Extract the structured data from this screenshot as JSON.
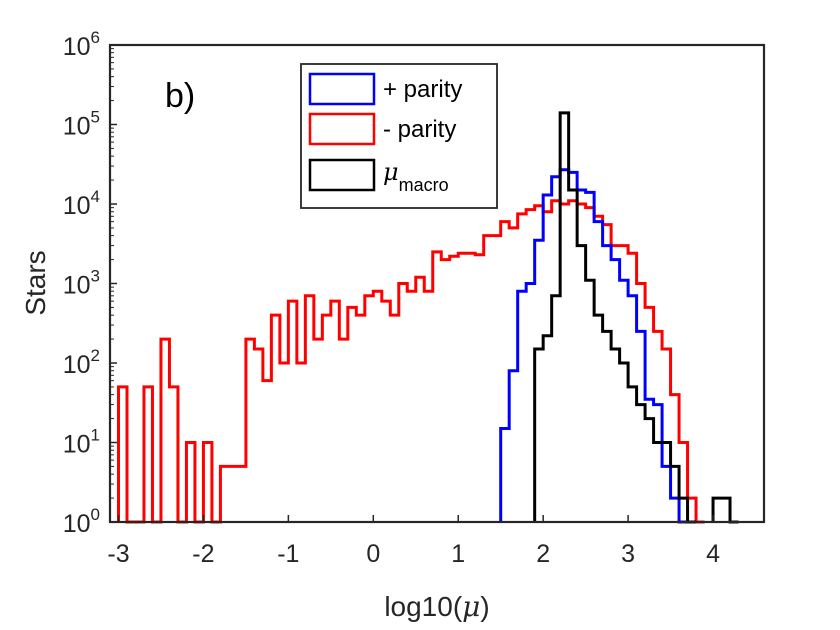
{
  "chart_data": {
    "type": "histogram",
    "panel_label": "b)",
    "xlabel": "log10(",
    "xlabel_symbol": "μ",
    "xlabel_close": ")",
    "ylabel": "Stars",
    "xlim": [
      -3.1,
      4.6
    ],
    "ylim": [
      1,
      1000000
    ],
    "y_scale": "log",
    "x_ticks": [
      "-3",
      "-2",
      "-1",
      "0",
      "1",
      "2",
      "3",
      "4"
    ],
    "y_tick_base": "10",
    "y_tick_exponents": [
      "0",
      "1",
      "2",
      "3",
      "4",
      "5",
      "6"
    ],
    "legend_position": "top-center",
    "series": [
      {
        "name": "+ parity",
        "color": "#0000ff",
        "bins": [
          [
            1.5,
            1.6,
            15
          ],
          [
            1.6,
            1.7,
            80
          ],
          [
            1.7,
            1.8,
            800
          ],
          [
            1.8,
            1.9,
            1000
          ],
          [
            1.9,
            2.0,
            3500
          ],
          [
            2.0,
            2.1,
            13000
          ],
          [
            2.1,
            2.2,
            22000
          ],
          [
            2.2,
            2.3,
            27000
          ],
          [
            2.3,
            2.4,
            25000
          ],
          [
            2.4,
            2.5,
            15000
          ],
          [
            2.5,
            2.6,
            14000
          ],
          [
            2.6,
            2.7,
            6000
          ],
          [
            2.7,
            2.8,
            3000
          ],
          [
            2.8,
            2.9,
            2000
          ],
          [
            2.9,
            3.0,
            1100
          ],
          [
            3.0,
            3.1,
            700
          ],
          [
            3.1,
            3.2,
            250
          ],
          [
            3.2,
            3.3,
            35
          ],
          [
            3.3,
            3.4,
            30
          ],
          [
            3.4,
            3.5,
            5
          ],
          [
            3.5,
            3.6,
            2
          ],
          [
            3.6,
            3.7,
            1
          ]
        ]
      },
      {
        "name": "- parity",
        "color": "#ff0000",
        "bins": [
          [
            -3.0,
            -2.9,
            50
          ],
          [
            -2.9,
            -2.8,
            1
          ],
          [
            -2.8,
            -2.7,
            1
          ],
          [
            -2.7,
            -2.6,
            50
          ],
          [
            -2.6,
            -2.5,
            1
          ],
          [
            -2.5,
            -2.4,
            200
          ],
          [
            -2.4,
            -2.3,
            50
          ],
          [
            -2.3,
            -2.2,
            1
          ],
          [
            -2.2,
            -2.1,
            10
          ],
          [
            -2.1,
            -2.0,
            1
          ],
          [
            -2.0,
            -1.9,
            10
          ],
          [
            -1.9,
            -1.8,
            1
          ],
          [
            -1.8,
            -1.7,
            5
          ],
          [
            -1.7,
            -1.6,
            5
          ],
          [
            -1.6,
            -1.5,
            5
          ],
          [
            -1.5,
            -1.4,
            200
          ],
          [
            -1.4,
            -1.3,
            150
          ],
          [
            -1.3,
            -1.2,
            60
          ],
          [
            -1.2,
            -1.1,
            400
          ],
          [
            -1.1,
            -1.0,
            100
          ],
          [
            -1.0,
            -0.9,
            600
          ],
          [
            -0.9,
            -0.8,
            100
          ],
          [
            -0.8,
            -0.7,
            700
          ],
          [
            -0.7,
            -0.6,
            200
          ],
          [
            -0.6,
            -0.5,
            400
          ],
          [
            -0.5,
            -0.4,
            600
          ],
          [
            -0.4,
            -0.3,
            200
          ],
          [
            -0.3,
            -0.2,
            500
          ],
          [
            -0.2,
            -0.1,
            400
          ],
          [
            -0.1,
            0.0,
            700
          ],
          [
            0.0,
            0.1,
            800
          ],
          [
            0.1,
            0.2,
            600
          ],
          [
            0.2,
            0.3,
            400
          ],
          [
            0.3,
            0.4,
            1000
          ],
          [
            0.4,
            0.5,
            800
          ],
          [
            0.5,
            0.6,
            1200
          ],
          [
            0.6,
            0.7,
            800
          ],
          [
            0.7,
            0.8,
            2500
          ],
          [
            0.8,
            0.9,
            2000
          ],
          [
            0.9,
            1.0,
            2200
          ],
          [
            1.0,
            1.1,
            2400
          ],
          [
            1.1,
            1.2,
            2400
          ],
          [
            1.2,
            1.3,
            2300
          ],
          [
            1.3,
            1.4,
            4000
          ],
          [
            1.4,
            1.5,
            4000
          ],
          [
            1.5,
            1.6,
            6000
          ],
          [
            1.6,
            1.7,
            5000
          ],
          [
            1.7,
            1.8,
            7500
          ],
          [
            1.8,
            1.9,
            8500
          ],
          [
            1.9,
            2.0,
            9500
          ],
          [
            2.0,
            2.1,
            8000
          ],
          [
            2.1,
            2.2,
            11000
          ],
          [
            2.2,
            2.3,
            10000
          ],
          [
            2.3,
            2.4,
            11000
          ],
          [
            2.4,
            2.5,
            10000
          ],
          [
            2.5,
            2.6,
            9000
          ],
          [
            2.6,
            2.7,
            7000
          ],
          [
            2.7,
            2.8,
            5500
          ],
          [
            2.8,
            2.9,
            3000
          ],
          [
            2.9,
            3.0,
            3000
          ],
          [
            3.0,
            3.1,
            2400
          ],
          [
            3.1,
            3.2,
            1000
          ],
          [
            3.2,
            3.3,
            500
          ],
          [
            3.3,
            3.4,
            250
          ],
          [
            3.4,
            3.5,
            150
          ],
          [
            3.5,
            3.6,
            40
          ],
          [
            3.6,
            3.7,
            10
          ],
          [
            3.7,
            3.8,
            2
          ],
          [
            3.8,
            3.9,
            1
          ]
        ]
      },
      {
        "name": "μ",
        "name_subscript": "macro",
        "color": "#000000",
        "bins": [
          [
            1.9,
            2.0,
            150
          ],
          [
            2.0,
            2.1,
            220
          ],
          [
            2.1,
            2.2,
            700
          ],
          [
            2.2,
            2.3,
            140000
          ],
          [
            2.3,
            2.4,
            15000
          ],
          [
            2.4,
            2.5,
            3000
          ],
          [
            2.5,
            2.6,
            1100
          ],
          [
            2.6,
            2.7,
            400
          ],
          [
            2.7,
            2.8,
            250
          ],
          [
            2.8,
            2.9,
            150
          ],
          [
            2.9,
            3.0,
            100
          ],
          [
            3.0,
            3.1,
            50
          ],
          [
            3.1,
            3.2,
            30
          ],
          [
            3.2,
            3.3,
            20
          ],
          [
            3.3,
            3.4,
            10
          ],
          [
            3.4,
            3.5,
            10
          ],
          [
            3.5,
            3.6,
            5
          ],
          [
            3.6,
            3.7,
            2
          ],
          [
            3.7,
            3.8,
            1
          ],
          [
            4.0,
            4.1,
            2
          ],
          [
            4.1,
            4.2,
            2
          ],
          [
            4.2,
            4.3,
            1
          ]
        ]
      }
    ]
  }
}
